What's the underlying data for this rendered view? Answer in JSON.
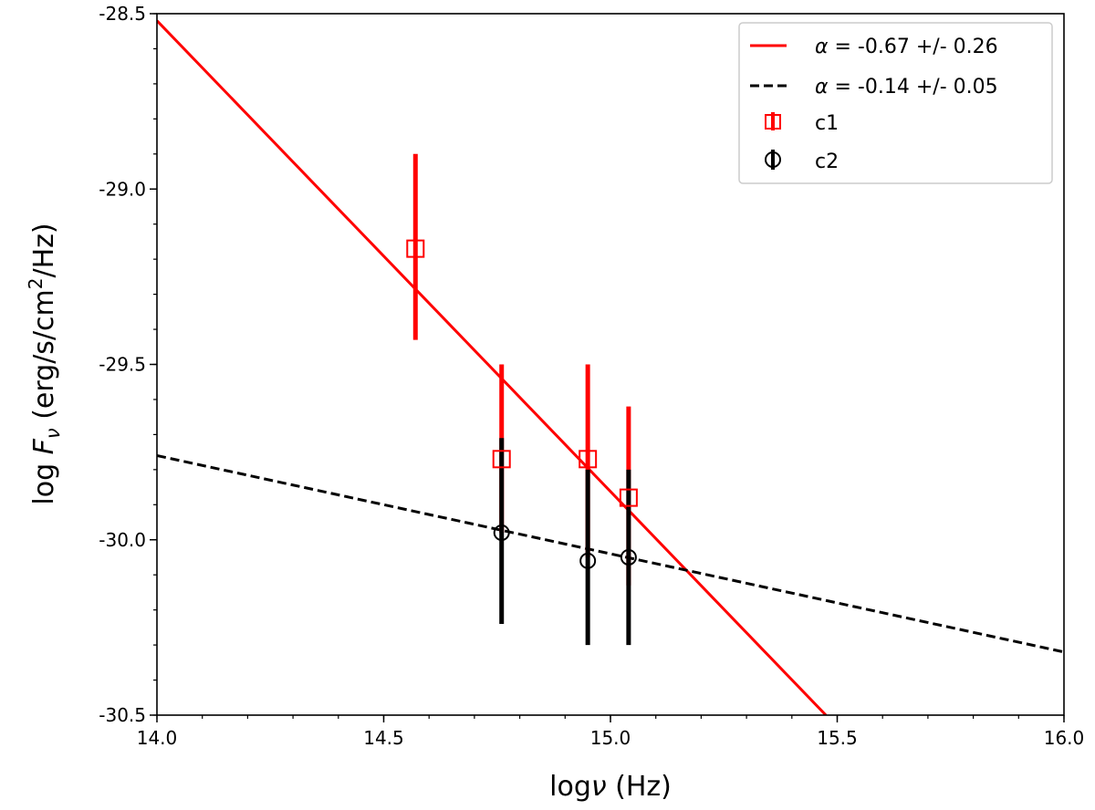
{
  "chart_data": {
    "type": "scatter",
    "xlim": [
      14.0,
      16.0
    ],
    "ylim": [
      -30.5,
      -28.5
    ],
    "xticks": [
      "14.0",
      "14.5",
      "15.0",
      "15.5",
      "16.0"
    ],
    "yticks": [
      "-28.5",
      "-29.0",
      "-29.5",
      "-30.0",
      "-30.5"
    ],
    "x_minor_step": 0.1,
    "y_minor_step": 0.1,
    "grid": false,
    "legend_position": "top-right",
    "xlabel": {
      "prefix": "log",
      "symbol": "ν",
      "unit": " (Hz)"
    },
    "ylabel": {
      "prefix": "log ",
      "symbol": "F",
      "subscript": "ν",
      "unit_before_sup": " (erg/s/cm",
      "superscript": "2",
      "unit_after_sup": "/Hz)"
    },
    "lines": [
      {
        "name_prefix": "α",
        "name": " = -0.67 +/- 0.26",
        "color": "#ff0000",
        "style": "solid",
        "x": [
          14.0,
          15.475
        ],
        "y": [
          -28.52,
          -30.5
        ]
      },
      {
        "name_prefix": "α",
        "name": " = -0.14 +/- 0.05",
        "color": "#000000",
        "style": "dashed",
        "x": [
          14.0,
          16.0
        ],
        "y": [
          -29.76,
          -30.32
        ]
      }
    ],
    "series": [
      {
        "name": "c1",
        "marker": "square",
        "color": "#ff0000",
        "x": [
          14.57,
          14.76,
          14.95,
          15.04
        ],
        "y": [
          -29.17,
          -29.77,
          -29.77,
          -29.88
        ],
        "ylow": [
          -29.43,
          -29.98,
          -30.05,
          -30.13
        ],
        "yhigh": [
          -28.9,
          -29.5,
          -29.5,
          -29.62
        ]
      },
      {
        "name": "c2",
        "marker": "circle",
        "color": "#000000",
        "x": [
          14.76,
          14.95,
          15.04
        ],
        "y": [
          -29.98,
          -30.06,
          -30.05
        ],
        "ylow": [
          -30.24,
          -30.3,
          -30.3
        ],
        "yhigh": [
          -29.71,
          -29.8,
          -29.8
        ]
      }
    ]
  }
}
